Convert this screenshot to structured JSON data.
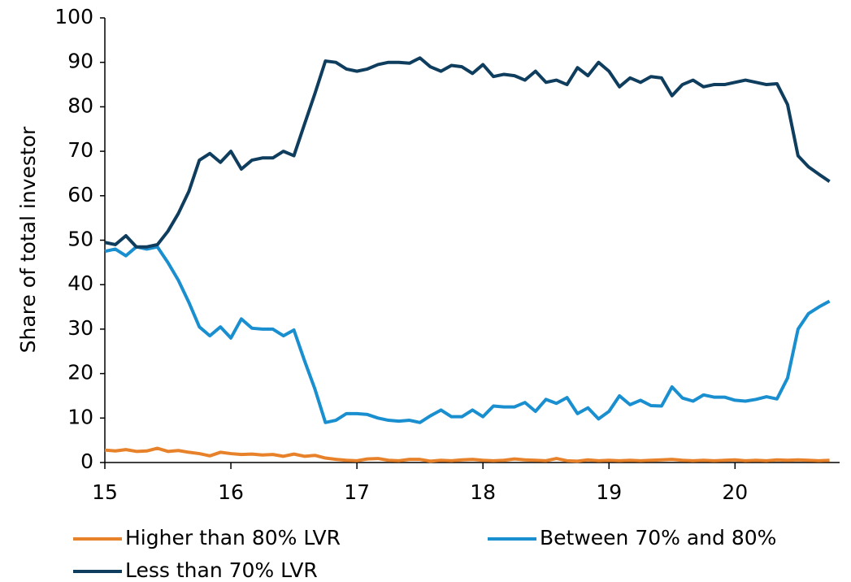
{
  "chart_data": {
    "type": "line",
    "y_label": "Share of total investor",
    "x": [
      15,
      15.083,
      15.167,
      15.25,
      15.333,
      15.417,
      15.5,
      15.583,
      15.667,
      15.75,
      15.833,
      15.917,
      16,
      16.083,
      16.167,
      16.25,
      16.333,
      16.417,
      16.5,
      16.583,
      16.667,
      16.75,
      16.833,
      16.917,
      17,
      17.083,
      17.167,
      17.25,
      17.333,
      17.417,
      17.5,
      17.583,
      17.667,
      17.75,
      17.833,
      17.917,
      18,
      18.083,
      18.167,
      18.25,
      18.333,
      18.417,
      18.5,
      18.583,
      18.667,
      18.75,
      18.833,
      18.917,
      19,
      19.083,
      19.167,
      19.25,
      19.333,
      19.417,
      19.5,
      19.583,
      19.667,
      19.75,
      19.833,
      19.917,
      20,
      20.083,
      20.167,
      20.25,
      20.333,
      20.417,
      20.5,
      20.583,
      20.667,
      20.75
    ],
    "series": [
      {
        "name": "Higher than 80% LVR",
        "color": "#e8822a",
        "values": [
          2.8,
          2.6,
          2.9,
          2.5,
          2.6,
          3.2,
          2.5,
          2.7,
          2.3,
          2,
          1.5,
          2.3,
          2,
          1.8,
          1.9,
          1.7,
          1.8,
          1.4,
          1.9,
          1.4,
          1.6,
          1,
          0.7,
          0.5,
          0.4,
          0.8,
          0.9,
          0.5,
          0.4,
          0.7,
          0.7,
          0.3,
          0.5,
          0.4,
          0.6,
          0.7,
          0.5,
          0.4,
          0.5,
          0.8,
          0.6,
          0.5,
          0.4,
          0.9,
          0.4,
          0.3,
          0.6,
          0.4,
          0.5,
          0.4,
          0.5,
          0.4,
          0.5,
          0.6,
          0.7,
          0.5,
          0.4,
          0.5,
          0.4,
          0.5,
          0.6,
          0.4,
          0.5,
          0.4,
          0.6,
          0.5,
          0.6,
          0.5,
          0.4,
          0.5
        ]
      },
      {
        "name": "Between 70% and 80%",
        "color": "#1a8fd0",
        "values": [
          47.5,
          48,
          46.5,
          48.5,
          48,
          48.5,
          45,
          41,
          36,
          30.5,
          28.5,
          30.5,
          28,
          32.3,
          30.2,
          30,
          30,
          28.5,
          29.8,
          23,
          16.5,
          9,
          9.5,
          11,
          11,
          10.8,
          10,
          9.5,
          9.3,
          9.5,
          9,
          10.5,
          11.8,
          10.3,
          10.3,
          11.8,
          10.3,
          12.7,
          12.5,
          12.5,
          13.5,
          11.5,
          14.2,
          13.3,
          14.6,
          11,
          12.3,
          9.8,
          11.5,
          15,
          13,
          14,
          12.8,
          12.7,
          17,
          14.5,
          13.8,
          15.2,
          14.7,
          14.7,
          14,
          13.8,
          14.2,
          14.8,
          14.3,
          19,
          30,
          33.5,
          35,
          36.3
        ]
      },
      {
        "name": "Less than 70% LVR",
        "color": "#0f3d5e",
        "values": [
          49.5,
          49,
          51,
          48.5,
          48.5,
          49,
          52,
          56,
          61,
          68,
          69.5,
          67.5,
          70,
          66,
          68,
          68.5,
          68.5,
          70,
          69,
          76,
          83,
          90.3,
          90,
          88.5,
          88,
          88.5,
          89.5,
          90,
          90,
          89.8,
          91,
          89,
          88,
          89.3,
          89,
          87.5,
          89.5,
          86.8,
          87.3,
          87,
          86,
          88,
          85.5,
          86,
          85,
          88.8,
          87,
          90,
          88,
          84.5,
          86.5,
          85.5,
          86.8,
          86.5,
          82.5,
          85,
          86,
          84.5,
          85,
          85,
          85.5,
          86,
          85.5,
          85,
          85.2,
          80.5,
          69,
          66.5,
          64.8,
          63.2
        ]
      }
    ],
    "xlim": [
      15,
      20.83
    ],
    "xticks": [
      15,
      16,
      17,
      18,
      19,
      20
    ],
    "ylim": [
      0,
      100
    ],
    "yticks": [
      0,
      10,
      20,
      30,
      40,
      50,
      60,
      70,
      80,
      90,
      100
    ],
    "grid": false,
    "legend": "bottom"
  }
}
